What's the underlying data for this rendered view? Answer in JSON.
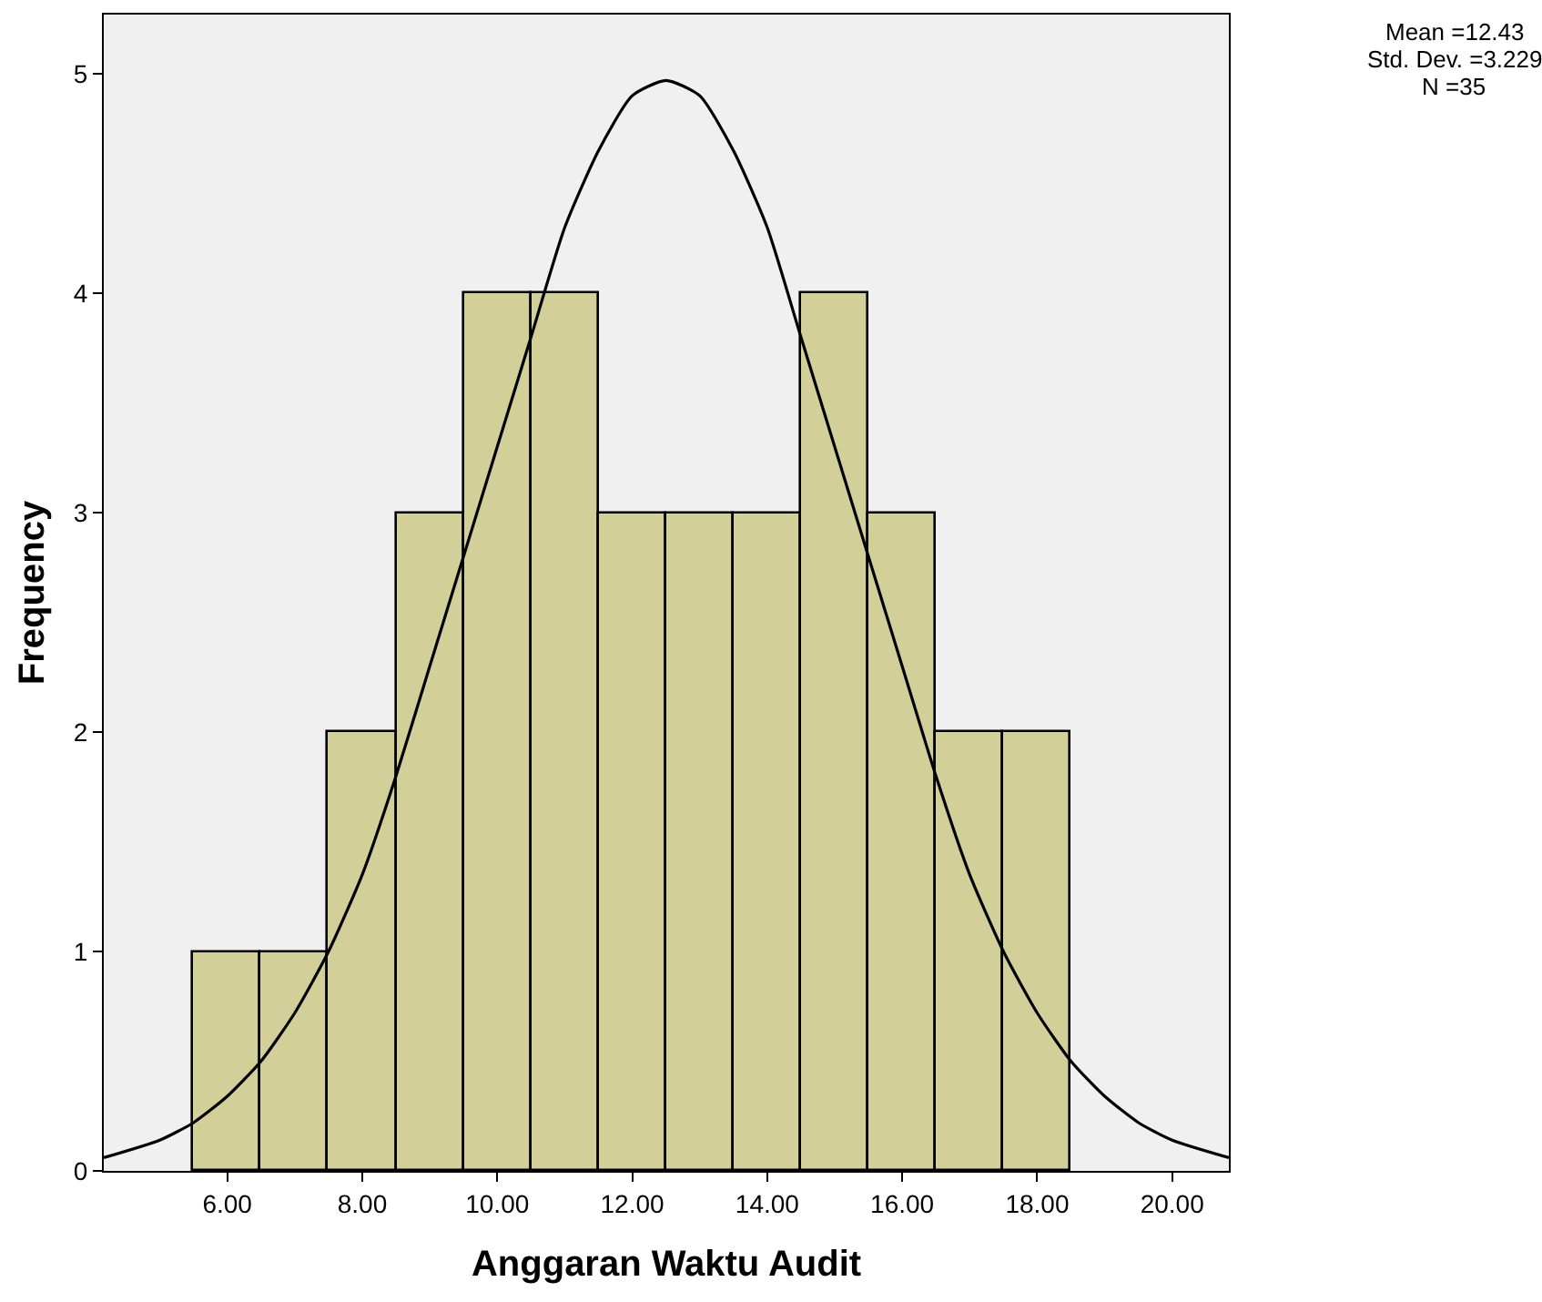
{
  "chart_data": {
    "type": "histogram",
    "xlabel": "Anggaran Waktu Audit",
    "ylabel": "Frequency",
    "bins": [
      5.5,
      6.5,
      7.5,
      8.5,
      9.5,
      10.5,
      11.5,
      12.5,
      13.5,
      14.5,
      15.5,
      16.5,
      17.5,
      18.5
    ],
    "values": [
      1,
      1,
      2,
      3,
      4,
      4,
      3,
      3,
      3,
      4,
      3,
      2,
      2
    ],
    "color": "#d3cf99",
    "series": [
      {
        "type": "line",
        "color": "#000000",
        "x": [
          4.17,
          5.0,
          5.5,
          6.0,
          6.5,
          7.0,
          7.5,
          8.0,
          8.5,
          9.0,
          9.5,
          10.0,
          10.5,
          11.0,
          11.5,
          12.0,
          12.5,
          13.0,
          13.5,
          14.0,
          14.5,
          15.0,
          15.5,
          16.0,
          16.5,
          17.0,
          17.5,
          18.0,
          18.5,
          19.0,
          19.5,
          20.0,
          20.84
        ],
        "values": [
          0.06,
          0.14,
          0.22,
          0.34,
          0.5,
          0.72,
          1.0,
          1.35,
          1.8,
          2.3,
          2.8,
          3.3,
          3.8,
          4.3,
          4.65,
          4.9,
          4.97,
          4.9,
          4.65,
          4.3,
          3.8,
          3.3,
          2.8,
          2.3,
          1.8,
          1.35,
          1.0,
          0.72,
          0.5,
          0.34,
          0.22,
          0.14,
          0.06
        ]
      }
    ],
    "xlim": [
      4.17,
      20.84
    ],
    "ylim": [
      0,
      5.27
    ],
    "xticks": [
      {
        "value": 6,
        "label": "6.00"
      },
      {
        "value": 8,
        "label": "8.00"
      },
      {
        "value": 10,
        "label": "10.00"
      },
      {
        "value": 12,
        "label": "12.00"
      },
      {
        "value": 14,
        "label": "14.00"
      },
      {
        "value": 16,
        "label": "16.00"
      },
      {
        "value": 18,
        "label": "18.00"
      },
      {
        "value": 20,
        "label": "20.00"
      }
    ],
    "yticks": [
      0,
      1,
      2,
      3,
      4,
      5
    ],
    "annotations": [
      "Mean =12.43",
      "Std. Dev. =3.229",
      "N =35"
    ],
    "grid": false
  }
}
